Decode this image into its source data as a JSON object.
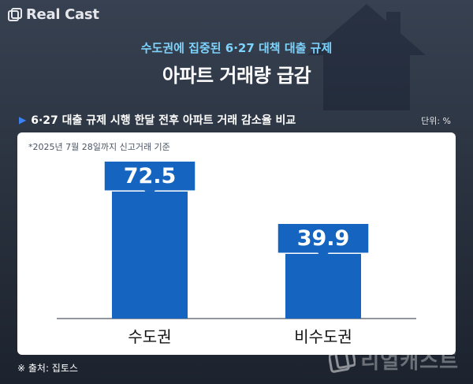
{
  "logo": {
    "text": "Real Cast"
  },
  "header": {
    "subtitle": "수도권에 집중된 6·27 대책 대출 규제",
    "title": "아파트 거래량 급감"
  },
  "section": {
    "heading": "6·27 대출 규제 시행 한달 전후 아파트 거래 감소율 비교",
    "unit": "단위: %"
  },
  "note": "*2025년 7월 28일까지 신고거래 기준",
  "source": "※ 출처: 집토스",
  "watermark": "리얼캐스트",
  "colors": {
    "bar": "#1565c0",
    "label_box": "#1565c0",
    "accent_text": "#7dd3fc"
  },
  "chart_data": {
    "type": "bar",
    "title": "6·27 대출 규제 시행 한달 전후 아파트 거래 감소율 비교",
    "categories": [
      "수도권",
      "비수도권"
    ],
    "values": [
      72.5,
      39.9
    ],
    "ylabel": "단위: %",
    "ylim": [
      0,
      80
    ],
    "grid": false,
    "legend": "none"
  }
}
